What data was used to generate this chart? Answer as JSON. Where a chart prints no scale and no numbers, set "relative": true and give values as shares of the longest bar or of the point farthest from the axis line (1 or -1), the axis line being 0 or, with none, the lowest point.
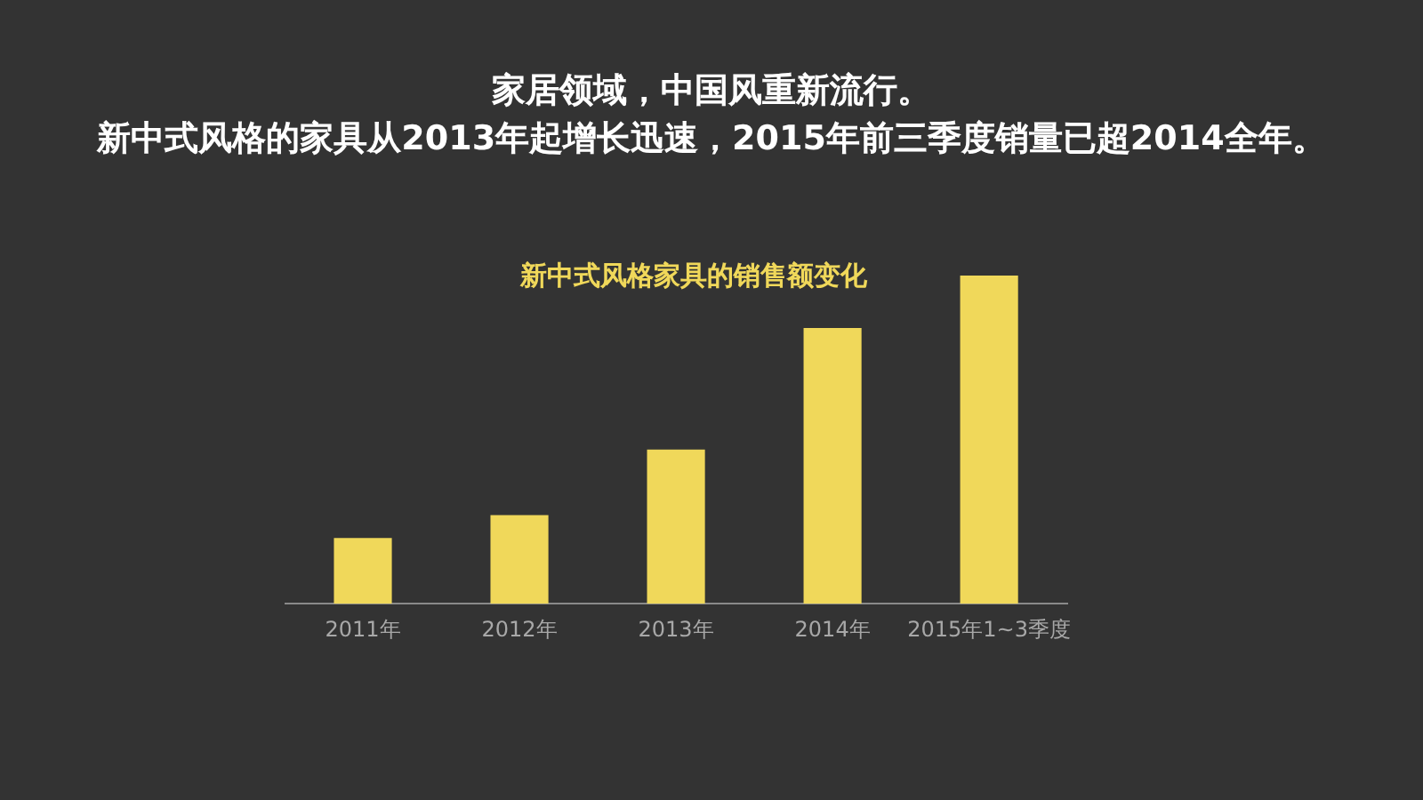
{
  "chart_data": {
    "type": "bar",
    "title": "家居领域，中国风重新流行。新中式风格的家具从2013年起增长迅速，2015年前三季度销量已超2014全年。",
    "subtitle": "新中式风格家具的销售额变化",
    "categories": [
      "2011年",
      "2012年",
      "2013年",
      "2014年",
      "2015年1~3季度"
    ],
    "values": [
      0.2,
      0.27,
      0.47,
      0.84,
      1
    ],
    "color": "#f0d85a",
    "relative": true,
    "grid": false,
    "legend": false
  }
}
